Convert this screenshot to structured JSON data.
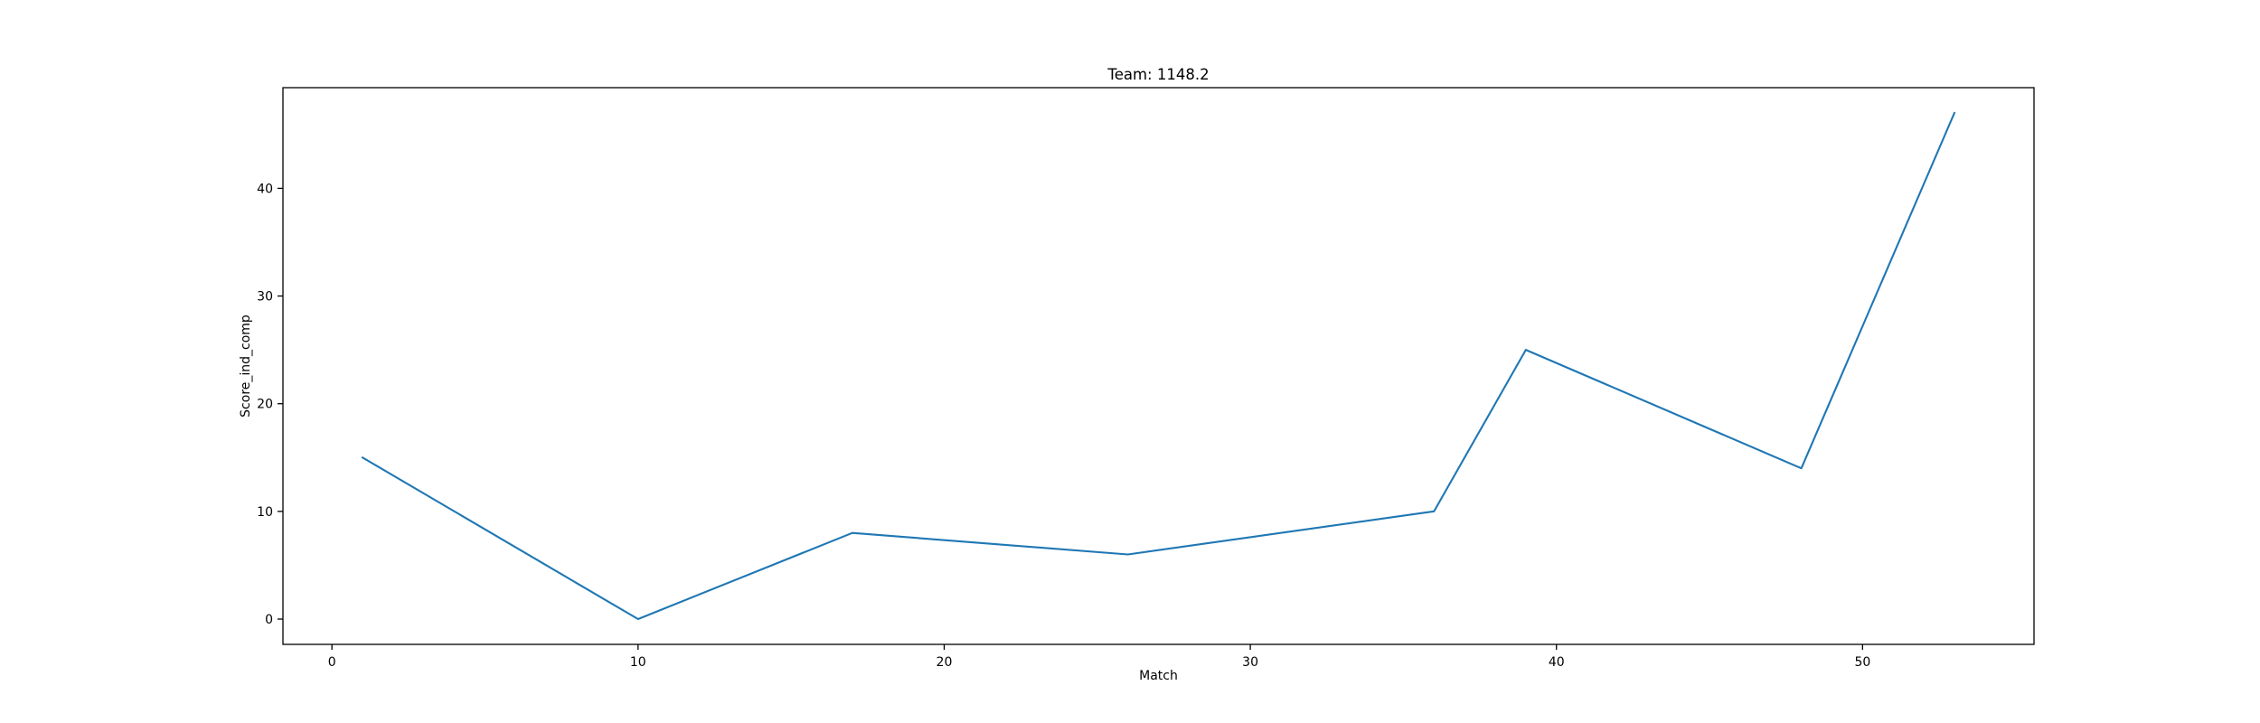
{
  "chart_data": {
    "type": "line",
    "title": "Team: 1148.2",
    "xlabel": "Match",
    "ylabel": "Score_ind_comp",
    "xlim": [
      -1.6,
      55.6
    ],
    "ylim": [
      -2.35,
      49.35
    ],
    "xticks": [
      0,
      10,
      20,
      30,
      40,
      50
    ],
    "yticks": [
      0,
      10,
      20,
      30,
      40
    ],
    "grid": false,
    "series": [
      {
        "color": "#1f77b4",
        "x": [
          1,
          10,
          17,
          26,
          36,
          39,
          48,
          53
        ],
        "y": [
          15,
          0,
          8,
          6,
          10,
          25,
          14,
          47
        ]
      }
    ]
  }
}
